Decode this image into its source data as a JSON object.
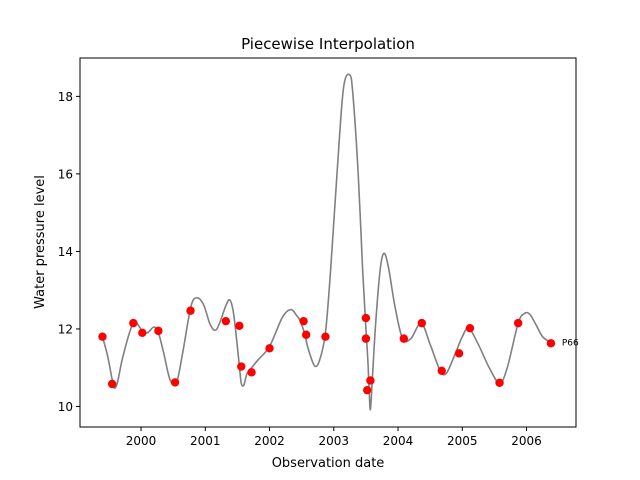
{
  "chart_data": {
    "type": "line",
    "title": "Piecewise Interpolation",
    "xlabel": "Observation date",
    "ylabel": "Water pressure level",
    "xlim": [
      1999.05,
      2006.77
    ],
    "ylim": [
      9.47,
      18.99
    ],
    "x_ticks": [
      2000,
      2001,
      2002,
      2003,
      2004,
      2005,
      2006
    ],
    "x_tick_labels": [
      "2000",
      "2001",
      "2002",
      "2003",
      "2004",
      "2005",
      "2006"
    ],
    "y_ticks": [
      10,
      12,
      14,
      16,
      18
    ],
    "y_tick_labels": [
      "10",
      "12",
      "14",
      "16",
      "18"
    ],
    "grid": false,
    "curve_color": "#808080",
    "marker_color": "#ff0000",
    "curve": {
      "x": [
        1999.4,
        1999.48,
        1999.55,
        1999.58,
        1999.63,
        1999.72,
        1999.88,
        2000.02,
        2000.1,
        2000.2,
        2000.27,
        2000.35,
        2000.45,
        2000.55,
        2000.65,
        2000.78,
        2000.88,
        2000.98,
        2001.08,
        2001.18,
        2001.32,
        2001.38,
        2001.43,
        2001.47,
        2001.53,
        2001.56,
        2001.6,
        2001.65,
        2001.72,
        2001.82,
        2002.0,
        2002.2,
        2002.33,
        2002.42,
        2002.48,
        2002.55,
        2002.6,
        2002.7,
        2002.78,
        2002.87,
        2002.95,
        2003.05,
        2003.15,
        2003.25,
        2003.3,
        2003.38,
        2003.45,
        2003.5,
        2003.53,
        2003.55,
        2003.57,
        2003.6,
        2003.65,
        2003.72,
        2003.78,
        2003.85,
        2003.95,
        2004.07,
        2004.2,
        2004.36,
        2004.5,
        2004.65,
        2004.75,
        2004.9,
        2005.0,
        2005.1,
        2005.25,
        2005.42,
        2005.58,
        2005.7,
        2005.87,
        2005.97,
        2006.05,
        2006.15,
        2006.25,
        2006.38
      ],
      "y": [
        11.8,
        11.3,
        10.7,
        10.48,
        10.6,
        11.3,
        12.15,
        11.95,
        11.9,
        12.05,
        11.9,
        11.4,
        10.7,
        10.6,
        11.4,
        12.6,
        12.8,
        12.6,
        12.1,
        12.0,
        12.6,
        12.75,
        12.5,
        12.0,
        11.05,
        10.6,
        10.55,
        10.85,
        11.0,
        11.2,
        11.55,
        12.3,
        12.5,
        12.35,
        12.2,
        11.85,
        11.5,
        11.05,
        11.2,
        11.9,
        13.5,
        16.0,
        18.2,
        18.55,
        18.0,
        16.0,
        13.5,
        12.0,
        11.2,
        10.43,
        9.92,
        10.7,
        12.1,
        13.5,
        13.95,
        13.6,
        12.6,
        11.75,
        11.75,
        12.15,
        11.6,
        10.95,
        10.85,
        11.4,
        11.8,
        12.02,
        11.6,
        11.0,
        10.6,
        11.0,
        12.15,
        12.4,
        12.38,
        12.1,
        11.8,
        11.65
      ]
    },
    "points": {
      "x": [
        1999.4,
        1999.55,
        1999.88,
        2000.02,
        2000.27,
        2000.53,
        2000.77,
        2001.32,
        2001.53,
        2001.56,
        2001.72,
        2002.0,
        2002.53,
        2002.57,
        2002.87,
        2003.5,
        2003.5,
        2003.52,
        2003.57,
        2004.09,
        2004.37,
        2004.68,
        2004.95,
        2005.12,
        2005.58,
        2005.87,
        2006.38
      ],
      "y": [
        11.8,
        10.58,
        12.15,
        11.9,
        11.95,
        10.62,
        12.47,
        12.2,
        12.08,
        11.03,
        10.88,
        11.5,
        12.2,
        11.85,
        11.8,
        12.28,
        11.75,
        10.42,
        10.67,
        11.75,
        12.15,
        10.92,
        11.37,
        12.02,
        10.61,
        12.15,
        11.63
      ]
    },
    "annotations": [
      {
        "text": "P66",
        "x": 2006.55,
        "y": 11.65
      }
    ]
  }
}
